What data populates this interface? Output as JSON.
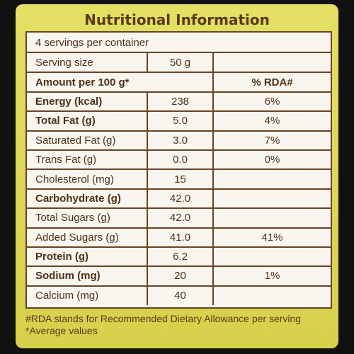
{
  "title": "Nutritional Information",
  "servings_per_container": "4 servings per container",
  "serving_size": {
    "label": "Serving size",
    "value": "50 g"
  },
  "header": {
    "label": "Amount per 100 g*",
    "rda": "% RDA#"
  },
  "rows": [
    {
      "name": "Energy (kcal)",
      "value": "238",
      "rda": "6%",
      "bold": true
    },
    {
      "name": "Total Fat (g)",
      "value": "5.0",
      "rda": "4%",
      "bold": true
    },
    {
      "name": "Saturated Fat (g)",
      "value": "3.0",
      "rda": "7%",
      "bold": false
    },
    {
      "name": "Trans Fat (g)",
      "value": "0.0",
      "rda": "0%",
      "bold": false
    },
    {
      "name": "Cholesterol (mg)",
      "value": "15",
      "rda": "",
      "bold": false
    },
    {
      "name": "Carbohydrate (g)",
      "value": "42.0",
      "rda": "",
      "bold": true
    },
    {
      "name": "Total Sugars (g)",
      "value": "42.0",
      "rda": "",
      "bold": false
    },
    {
      "name": "Added Sugars (g)",
      "value": "41.0",
      "rda": "41%",
      "bold": false
    },
    {
      "name": "Protein (g)",
      "value": "6.2",
      "rda": "",
      "bold": true
    },
    {
      "name": "Sodium (mg)",
      "value": "20",
      "rda": "1%",
      "bold": true
    },
    {
      "name": "Calcium (mg)",
      "value": "40",
      "rda": "",
      "bold": false
    }
  ],
  "footnotes": [
    "#RDA stands for Recommended Dietary Allowance per serving",
    "*Average values"
  ]
}
